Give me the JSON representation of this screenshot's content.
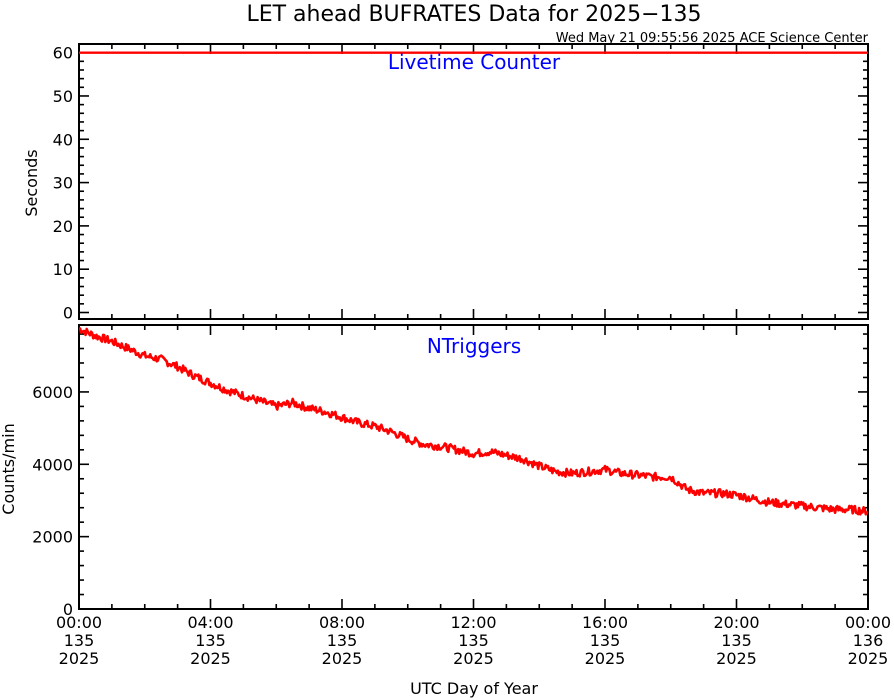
{
  "title": "LET ahead BUFRATES Data for 2025−135",
  "timestamp": "Wed May 21 09:55:56 2025 ACE Science Center",
  "xlabel": "UTC Day of Year",
  "colors": {
    "series": "#ff0000",
    "panel_title": "#0000ff",
    "axes": "#000000"
  },
  "chart_data": [
    {
      "type": "line",
      "title": "Livetime Counter",
      "ylabel": "Seconds",
      "ylim": [
        -1.5,
        62
      ],
      "yticks": [
        0,
        10,
        20,
        30,
        40,
        50,
        60
      ],
      "xlim": [
        0,
        24
      ],
      "series": [
        {
          "values_description_free": true,
          "x": [
            0,
            24
          ],
          "y": [
            60,
            60
          ]
        }
      ]
    },
    {
      "type": "line",
      "title": "NTriggers",
      "ylabel": "Counts/min",
      "ylim": [
        0,
        7850
      ],
      "yticks": [
        0,
        2000,
        4000,
        6000
      ],
      "xlim": [
        0,
        24
      ],
      "series": [
        {
          "x": [
            0,
            0.5,
            1,
            1.5,
            2,
            2.5,
            3,
            3.5,
            4,
            4.5,
            5,
            5.5,
            6,
            6.5,
            7,
            7.5,
            8,
            8.5,
            9,
            9.5,
            10,
            10.5,
            11,
            11.5,
            12,
            12.5,
            13,
            13.5,
            14,
            14.5,
            15,
            15.5,
            16,
            16.5,
            17,
            17.5,
            18,
            18.5,
            19,
            19.5,
            20,
            20.5,
            21,
            21.5,
            22,
            22.5,
            23,
            23.5,
            24
          ],
          "y": [
            7750,
            7550,
            7400,
            7200,
            7000,
            6900,
            6700,
            6450,
            6250,
            6050,
            5900,
            5750,
            5600,
            5700,
            5550,
            5450,
            5300,
            5150,
            5050,
            4900,
            4700,
            4550,
            4500,
            4400,
            4300,
            4350,
            4250,
            4150,
            3950,
            3800,
            3750,
            3800,
            3850,
            3750,
            3700,
            3650,
            3650,
            3300,
            3200,
            3200,
            3150,
            3050,
            2950,
            2900,
            2850,
            2800,
            2750,
            2750,
            2700
          ]
        }
      ]
    }
  ],
  "xticks": [
    {
      "x": 0,
      "time": "00:00",
      "doy": "135",
      "year": "2025"
    },
    {
      "x": 4,
      "time": "04:00",
      "doy": "135",
      "year": "2025"
    },
    {
      "x": 8,
      "time": "08:00",
      "doy": "135",
      "year": "2025"
    },
    {
      "x": 12,
      "time": "12:00",
      "doy": "135",
      "year": "2025"
    },
    {
      "x": 16,
      "time": "16:00",
      "doy": "135",
      "year": "2025"
    },
    {
      "x": 20,
      "time": "20:00",
      "doy": "135",
      "year": "2025"
    },
    {
      "x": 24,
      "time": "00:00",
      "doy": "136",
      "year": "2025"
    }
  ]
}
